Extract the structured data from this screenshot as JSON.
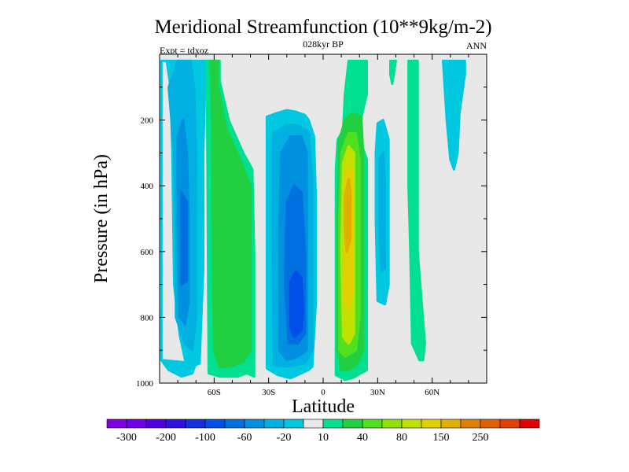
{
  "chart_data": {
    "type": "heatmap",
    "title": "Meridional Streamfunction (10**9kg/m-2)",
    "subtitle": "028kyr BP",
    "left_note": "Expt = tdxoz",
    "right_note": "ANN",
    "xlabel": "Latitude",
    "ylabel": "Pressure (in hPa)",
    "xlim": [
      -90,
      90
    ],
    "ylim": [
      1000,
      0
    ],
    "x_ticks": [
      {
        "value": -60,
        "label": "60S"
      },
      {
        "value": -30,
        "label": "30S"
      },
      {
        "value": 0,
        "label": "0"
      },
      {
        "value": 30,
        "label": "30N"
      },
      {
        "value": 60,
        "label": "60N"
      }
    ],
    "y_ticks": [
      {
        "value": 200,
        "label": "200"
      },
      {
        "value": 400,
        "label": "400"
      },
      {
        "value": 600,
        "label": "600"
      },
      {
        "value": 800,
        "label": "800"
      },
      {
        "value": 1000,
        "label": "1000"
      }
    ],
    "background_color": "#e8e8e8",
    "colorbar": {
      "colors": [
        "#8000e0",
        "#7000e8",
        "#5000e0",
        "#3010e0",
        "#1030e0",
        "#0050e8",
        "#0070e0",
        "#0090e0",
        "#00b0e0",
        "#00c8e0",
        "#e8e8e8",
        "#00e090",
        "#20d040",
        "#50e020",
        "#90e000",
        "#c0e000",
        "#e0d000",
        "#e0b000",
        "#e08000",
        "#e06000",
        "#e04000",
        "#e00000"
      ],
      "labels": [
        {
          "after_index": 0,
          "label": "-300"
        },
        {
          "after_index": 2,
          "label": "-200"
        },
        {
          "after_index": 4,
          "label": "-100"
        },
        {
          "after_index": 6,
          "label": "-60"
        },
        {
          "after_index": 8,
          "label": "-20"
        },
        {
          "after_index": 10,
          "label": "10"
        },
        {
          "after_index": 12,
          "label": "40"
        },
        {
          "after_index": 14,
          "label": "80"
        },
        {
          "after_index": 16,
          "label": "150"
        },
        {
          "after_index": 18,
          "label": "250"
        }
      ]
    },
    "regions": [
      {
        "name": "sh-polar-cell-outer",
        "color": "#00c8e0",
        "points": [
          [
            -89,
            20
          ],
          [
            -86,
            20
          ],
          [
            -84,
            100
          ],
          [
            -83,
            300
          ],
          [
            -82,
            700
          ],
          [
            -79,
            850
          ],
          [
            -76,
            930
          ],
          [
            -72,
            950
          ],
          [
            -68,
            940
          ],
          [
            -66,
            650
          ],
          [
            -66,
            300
          ],
          [
            -65,
            100
          ],
          [
            -64,
            20
          ],
          [
            -89,
            20
          ],
          [
            -89,
            930
          ],
          [
            -85,
            960
          ],
          [
            -78,
            980
          ],
          [
            -72,
            970
          ],
          [
            -70,
            940
          ],
          [
            -89,
            930
          ]
        ]
      },
      {
        "name": "sh-polar-cell-mid",
        "color": "#00b0e0",
        "points": [
          [
            -85,
            100
          ],
          [
            -82,
            300
          ],
          [
            -81,
            560
          ],
          [
            -81,
            800
          ],
          [
            -76,
            880
          ],
          [
            -72,
            900
          ],
          [
            -70,
            800
          ],
          [
            -70,
            300
          ],
          [
            -71,
            100
          ],
          [
            -73,
            20
          ],
          [
            -80,
            20
          ]
        ]
      },
      {
        "name": "sh-polar-cell-core",
        "color": "#0090e0",
        "points": [
          [
            -80,
            250
          ],
          [
            -80,
            500
          ],
          [
            -79,
            800
          ],
          [
            -76,
            820
          ],
          [
            -74,
            750
          ],
          [
            -74,
            500
          ],
          [
            -75,
            300
          ],
          [
            -77,
            200
          ]
        ]
      },
      {
        "name": "sh-polar-cell-inner",
        "color": "#0070e0",
        "points": [
          [
            -78,
            420
          ],
          [
            -78,
            700
          ],
          [
            -75,
            690
          ],
          [
            -75,
            450
          ]
        ]
      },
      {
        "name": "ferrel-cell-outer",
        "color": "#00e090",
        "points": [
          [
            -64,
            20
          ],
          [
            -57,
            20
          ],
          [
            -57,
            80
          ],
          [
            -52,
            200
          ],
          [
            -44,
            300
          ],
          [
            -39,
            350
          ],
          [
            -38,
            600
          ],
          [
            -38,
            980
          ],
          [
            -42,
            970
          ],
          [
            -47,
            980
          ],
          [
            -57,
            980
          ],
          [
            -63,
            970
          ]
        ]
      },
      {
        "name": "ferrel-cell-mid",
        "color": "#20d040",
        "points": [
          [
            -62,
            20
          ],
          [
            -58,
            20
          ],
          [
            -58,
            100
          ],
          [
            -53,
            230
          ],
          [
            -45,
            330
          ],
          [
            -40,
            400
          ],
          [
            -40,
            900
          ],
          [
            -44,
            935
          ],
          [
            -52,
            950
          ],
          [
            -57,
            950
          ],
          [
            -60,
            900
          ],
          [
            -61,
            500
          ],
          [
            -61,
            200
          ]
        ]
      },
      {
        "name": "hadley-sh-outer",
        "color": "#00c8e0",
        "points": [
          [
            -31,
            190
          ],
          [
            -26,
            180
          ],
          [
            -20,
            170
          ],
          [
            -15,
            175
          ],
          [
            -10,
            185
          ],
          [
            -8,
            200
          ],
          [
            -5,
            250
          ],
          [
            -4,
            450
          ],
          [
            -4,
            750
          ],
          [
            -6,
            950
          ],
          [
            -8,
            960
          ],
          [
            -12,
            970
          ],
          [
            -18,
            985
          ],
          [
            -25,
            975
          ],
          [
            -31,
            955
          ],
          [
            -31,
            600
          ],
          [
            -31,
            300
          ]
        ]
      },
      {
        "name": "hadley-sh-mid",
        "color": "#00b0e0",
        "points": [
          [
            -27,
            240
          ],
          [
            -20,
            215
          ],
          [
            -15,
            215
          ],
          [
            -8,
            235
          ],
          [
            -6,
            380
          ],
          [
            -6,
            900
          ],
          [
            -10,
            940
          ],
          [
            -20,
            950
          ],
          [
            -27,
            945
          ],
          [
            -28,
            600
          ],
          [
            -28,
            300
          ]
        ]
      },
      {
        "name": "hadley-sh-inner",
        "color": "#0090e0",
        "points": [
          [
            -23,
            300
          ],
          [
            -18,
            250
          ],
          [
            -12,
            250
          ],
          [
            -9,
            300
          ],
          [
            -9,
            900
          ],
          [
            -14,
            920
          ],
          [
            -20,
            930
          ],
          [
            -24,
            900
          ],
          [
            -24,
            500
          ]
        ]
      },
      {
        "name": "hadley-sh-deep",
        "color": "#0070e0",
        "points": [
          [
            -20,
            450
          ],
          [
            -16,
            400
          ],
          [
            -12,
            420
          ],
          [
            -10,
            600
          ],
          [
            -10,
            850
          ],
          [
            -14,
            880
          ],
          [
            -19,
            880
          ],
          [
            -21,
            700
          ]
        ]
      },
      {
        "name": "hadley-sh-core",
        "color": "#0050e8",
        "points": [
          [
            -18,
            690
          ],
          [
            -15,
            660
          ],
          [
            -12,
            680
          ],
          [
            -11,
            780
          ],
          [
            -12,
            840
          ],
          [
            -16,
            860
          ],
          [
            -18,
            830
          ]
        ]
      },
      {
        "name": "hadley-nh-outer",
        "color": "#00e090",
        "points": [
          [
            11,
            230
          ],
          [
            12,
            120
          ],
          [
            14,
            20
          ],
          [
            24,
            20
          ],
          [
            24,
            120
          ],
          [
            19,
            240
          ],
          [
            24,
            320
          ],
          [
            24,
            560
          ],
          [
            24,
            960
          ],
          [
            16,
            985
          ],
          [
            12,
            990
          ],
          [
            7,
            975
          ],
          [
            7,
            600
          ],
          [
            7,
            350
          ],
          [
            8,
            260
          ]
        ]
      },
      {
        "name": "hadley-nh-mid",
        "color": "#20d040",
        "points": [
          [
            9,
            260
          ],
          [
            12,
            200
          ],
          [
            16,
            180
          ],
          [
            21,
            190
          ],
          [
            22,
            300
          ],
          [
            22,
            560
          ],
          [
            22,
            900
          ],
          [
            19,
            940
          ],
          [
            14,
            960
          ],
          [
            10,
            960
          ],
          [
            8,
            900
          ],
          [
            8,
            500
          ]
        ]
      },
      {
        "name": "hadley-nh-inner",
        "color": "#50e020",
        "points": [
          [
            10,
            300
          ],
          [
            14,
            240
          ],
          [
            18,
            240
          ],
          [
            20,
            320
          ],
          [
            20,
            800
          ],
          [
            18,
            900
          ],
          [
            12,
            920
          ],
          [
            9,
            900
          ],
          [
            9,
            500
          ]
        ]
      },
      {
        "name": "hadley-nh-deep",
        "color": "#c0e000",
        "points": [
          [
            11,
            330
          ],
          [
            14,
            280
          ],
          [
            17,
            300
          ],
          [
            17,
            850
          ],
          [
            14,
            880
          ],
          [
            11,
            860
          ],
          [
            10,
            600
          ]
        ]
      },
      {
        "name": "hadley-nh-core",
        "color": "#e0d000",
        "points": [
          [
            12,
            380
          ],
          [
            14,
            340
          ],
          [
            16,
            360
          ],
          [
            16,
            720
          ],
          [
            14,
            780
          ],
          [
            12,
            740
          ]
        ]
      },
      {
        "name": "hadley-nh-peak",
        "color": "#e0b000",
        "points": [
          [
            12,
            430
          ],
          [
            14,
            380
          ],
          [
            15,
            420
          ],
          [
            15,
            560
          ],
          [
            13,
            600
          ],
          [
            12,
            540
          ]
        ]
      },
      {
        "name": "nh-ferrel-outer",
        "color": "#00c8e0",
        "points": [
          [
            30,
            210
          ],
          [
            33,
            200
          ],
          [
            36,
            260
          ],
          [
            36,
            700
          ],
          [
            34,
            760
          ],
          [
            30,
            750
          ],
          [
            29,
            500
          ],
          [
            29,
            300
          ]
        ]
      },
      {
        "name": "nh-ferrel-inner",
        "color": "#00b0e0",
        "points": [
          [
            31,
            320
          ],
          [
            33,
            300
          ],
          [
            34,
            400
          ],
          [
            34,
            650
          ],
          [
            32,
            660
          ],
          [
            31,
            500
          ]
        ]
      },
      {
        "name": "nh-lower-strip",
        "color": "#00e090",
        "points": [
          [
            47,
            20
          ],
          [
            52,
            20
          ],
          [
            52,
            300
          ],
          [
            52,
            600
          ],
          [
            56,
            880
          ],
          [
            55,
            930
          ],
          [
            53,
            930
          ],
          [
            49,
            880
          ],
          [
            48,
            600
          ],
          [
            47,
            400
          ]
        ]
      },
      {
        "name": "nh-thin-strip",
        "color": "#00e090",
        "points": [
          [
            37,
            20
          ],
          [
            40,
            20
          ],
          [
            38,
            90
          ],
          [
            37,
            60
          ]
        ]
      },
      {
        "name": "nh-polar-cell",
        "color": "#00c8e0",
        "points": [
          [
            66,
            20
          ],
          [
            78,
            20
          ],
          [
            78,
            60
          ],
          [
            75,
            180
          ],
          [
            74,
            300
          ],
          [
            72,
            350
          ],
          [
            70,
            320
          ],
          [
            68,
            200
          ]
        ]
      }
    ]
  }
}
